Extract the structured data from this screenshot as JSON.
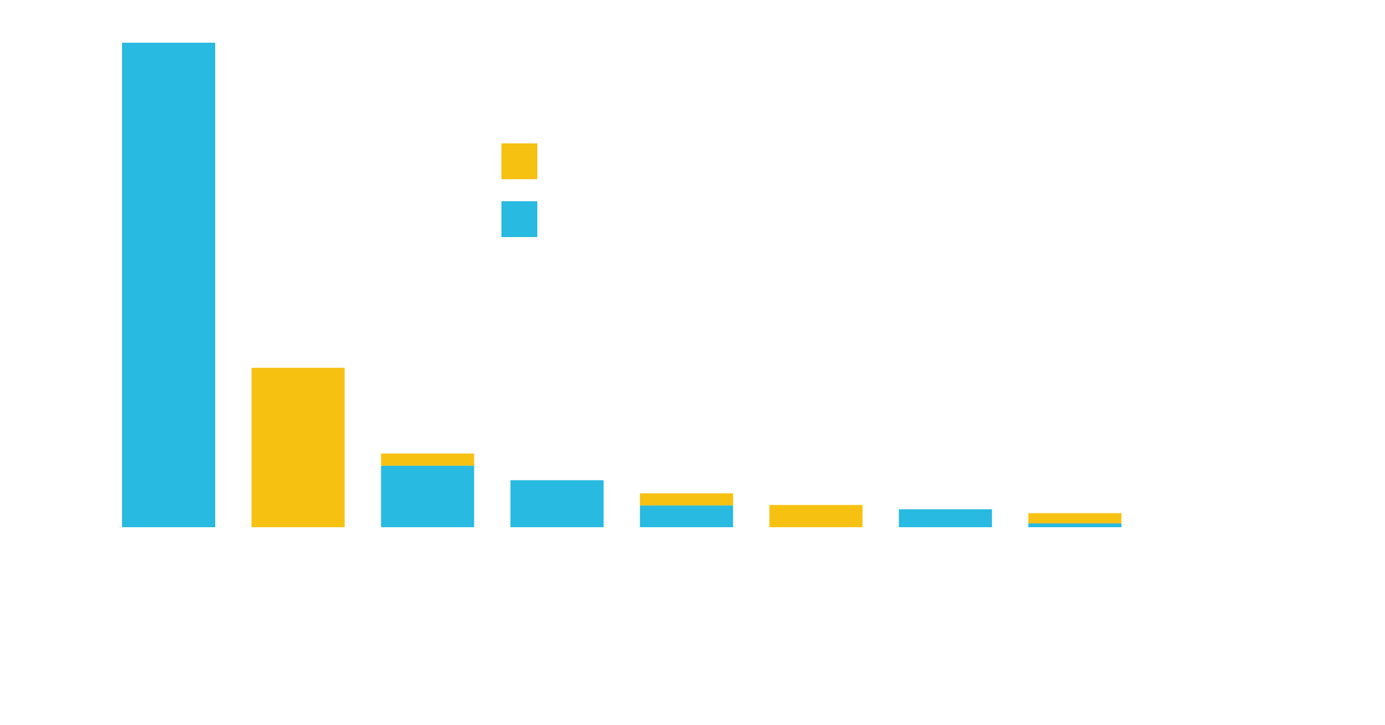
{
  "chart_data": {
    "type": "bar",
    "stacked": true,
    "title": "",
    "xlabel": "",
    "ylabel": "",
    "categories": [
      "",
      "",
      "",
      "",
      "",
      "",
      "",
      ""
    ],
    "ylim": [
      0,
      100
    ],
    "grid": false,
    "legend": {
      "placement": "top-center"
    },
    "series": [
      {
        "color": "#28BAE0",
        "values": [
          100,
          0,
          12.7,
          9.7,
          4.5,
          0,
          3.7,
          0.8
        ]
      },
      {
        "color": "#F7C112",
        "values": [
          0,
          32.9,
          2.5,
          0,
          2.5,
          4.6,
          0,
          2.1
        ]
      }
    ],
    "legend_order": [
      1,
      0
    ]
  }
}
